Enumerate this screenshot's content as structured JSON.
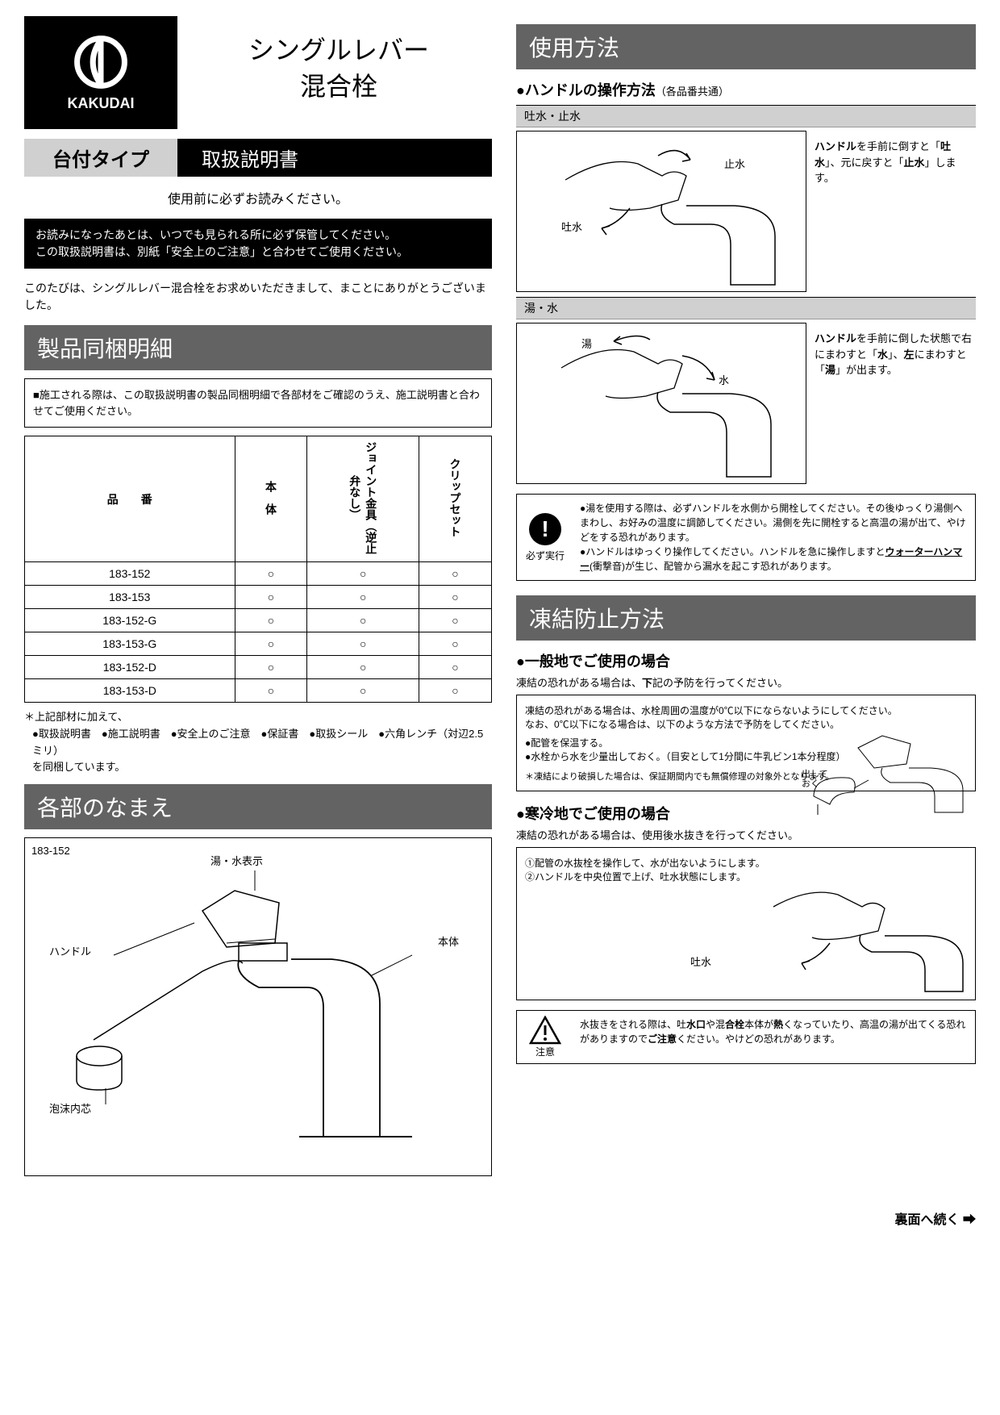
{
  "brand": "KAKUDAI",
  "title_line1": "シングルレバー",
  "title_line2": "混合栓",
  "type_label": "台付タイプ",
  "manual_label": "取扱説明書",
  "read_first": "使用前に必ずお読みください。",
  "black_box_line1": "お読みになったあとは、いつでも見られる所に必ず保管してください。",
  "black_box_line2": "この取扱説明書は、別紙「安全上のご注意」と合わせてご使用ください。",
  "thanks": "このたびは、シングルレバー混合栓をお求めいただきまして、まことにありがとうございました。",
  "section_contents": "製品同梱明細",
  "contents_note": "■施工される際は、この取扱説明書の製品同梱明細で各部材をご確認のうえ、施工説明書と合わせてご使用ください。",
  "table": {
    "col_item": "品　　番",
    "col_body": "本　体",
    "col_joint": "ジョイント金具（逆止弁なし）",
    "col_clip": "クリップセット",
    "rows": [
      {
        "item": "183-152",
        "body": "○",
        "joint": "○",
        "clip": "○"
      },
      {
        "item": "183-153",
        "body": "○",
        "joint": "○",
        "clip": "○"
      },
      {
        "item": "183-152-G",
        "body": "○",
        "joint": "○",
        "clip": "○"
      },
      {
        "item": "183-153-G",
        "body": "○",
        "joint": "○",
        "clip": "○"
      },
      {
        "item": "183-152-D",
        "body": "○",
        "joint": "○",
        "clip": "○"
      },
      {
        "item": "183-153-D",
        "body": "○",
        "joint": "○",
        "clip": "○"
      }
    ]
  },
  "notes_lead": "＊上記部材に加えて、",
  "notes_items": [
    "取扱説明書",
    "施工説明書",
    "安全上のご注意",
    "保証書",
    "取扱シール",
    "六角レンチ（対辺2.5ミリ）"
  ],
  "notes_tail": "を同梱しています。",
  "section_parts": "各部のなまえ",
  "model_shown": "183-152",
  "part_labels": {
    "yumizy": "湯・水表示",
    "body": "本体",
    "handle": "ハンドル",
    "aerator": "泡沫内芯"
  },
  "section_usage": "使用方法",
  "usage_handle_title": "●ハンドルの操作方法",
  "usage_handle_sub": "（各品番共通）",
  "box1_label": "吐水・止水",
  "box1_labels": {
    "stop": "止水",
    "spout": "吐水"
  },
  "box1_text": "ハンドルを手前に倒すと「吐水」、元に戻すと「止水」します。",
  "box2_label": "湯・水",
  "box2_labels": {
    "hot": "湯",
    "cold": "水"
  },
  "box2_text": "ハンドルを手前に倒した状態で右にまわすと「水」、左にまわすと「湯」が出ます。",
  "must_do_label": "必ず実行",
  "must_do_text1": "●湯を使用する際は、必ずハンドルを水側から開栓してください。その後ゆっくり湯側へまわし、お好みの温度に調節してください。湯側を先に開栓すると高温の湯が出て、やけどをする恐れがあります。",
  "must_do_text2": "●ハンドルはゆっくり操作してください。ハンドルを急に操作しますとウォーターハンマー(衝撃音)が生じ、配管から漏水を起こす恐れがあります。",
  "section_freeze": "凍結防止方法",
  "freeze_general_title": "●一般地でご使用の場合",
  "freeze_general_sub": "凍結の恐れがある場合は、下記の予防を行ってください。",
  "freeze_box1_text1": "凍結の恐れがある場合は、水栓周囲の温度が0℃以下にならないようにしてください。",
  "freeze_box1_text2": "なお、0℃以下になる場合は、以下のような方法で予防をしてください。",
  "freeze_box1_items": [
    "配管を保温する。",
    "水栓から水を少量出しておく。（目安として1分間に牛乳ビン1本分程度）"
  ],
  "freeze_box1_note": "＊凍結により破損した場合は、保証期間内でも無償修理の対象外となります。",
  "freeze_box1_balloon": "出しておく",
  "freeze_cold_title": "●寒冷地でご使用の場合",
  "freeze_cold_sub": "凍結の恐れがある場合は、使用後水抜きを行ってください。",
  "freeze_box2_items": [
    "①配管の水抜栓を操作して、水が出ないようにします。",
    "②ハンドルを中央位置で上げ、吐水状態にします。"
  ],
  "freeze_box2_label": "吐水",
  "caution_label": "注意",
  "caution_text": "水抜きをされる際は、吐水口や混合栓本体が熱くなっていたり、高温の湯が出てくる恐れがありますのでご注意ください。やけどの恐れがあります。",
  "continue_text": "裏面へ続く ➡",
  "colors": {
    "header_gray": "#636363",
    "label_gray": "#d0d0d0"
  }
}
